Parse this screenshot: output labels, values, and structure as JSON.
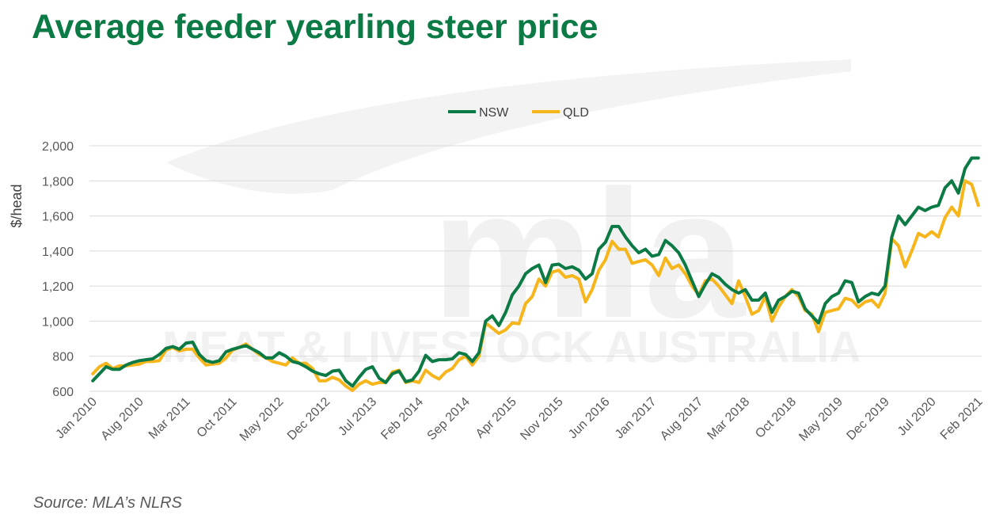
{
  "title": "Average feeder yearling steer price",
  "source": "Source: MLA’s NLRS",
  "watermark": {
    "logo": "mla",
    "tagline": "MEAT & LIVESTOCK AUSTRALIA"
  },
  "chart_data": {
    "type": "line",
    "title": "Average feeder yearling steer price",
    "ylabel": "$/head",
    "xlabel": "",
    "ylim": [
      600,
      2000
    ],
    "yticks": [
      600,
      800,
      1000,
      1200,
      1400,
      1600,
      1800,
      2000
    ],
    "ytick_labels": [
      "600",
      "800",
      "1,000",
      "1,200",
      "1,400",
      "1,600",
      "1,800",
      "2,000"
    ],
    "grid": "horizontal",
    "legend": "top-center",
    "x_tick_labels": [
      "Jan 2010",
      "Aug 2010",
      "Mar 2011",
      "Oct 2011",
      "May 2012",
      "Dec 2012",
      "Jul 2013",
      "Feb 2014",
      "Sep 2014",
      "Apr 2015",
      "Nov 2015",
      "Jun 2016",
      "Jan 2017",
      "Aug 2017",
      "Mar 2018",
      "Oct 2018",
      "May 2019",
      "Dec 2019",
      "Jul 2020",
      "Feb 2021"
    ],
    "x_start": "Jan 2010",
    "x_end": "Apr 2021",
    "series": [
      {
        "name": "NSW",
        "color": "#0c7a45",
        "values": [
          660,
          700,
          740,
          725,
          725,
          750,
          765,
          775,
          780,
          785,
          810,
          845,
          855,
          840,
          875,
          880,
          810,
          775,
          765,
          775,
          825,
          840,
          850,
          860,
          840,
          820,
          790,
          790,
          820,
          800,
          770,
          760,
          740,
          715,
          700,
          690,
          715,
          720,
          660,
          630,
          680,
          725,
          740,
          675,
          650,
          700,
          715,
          655,
          665,
          715,
          805,
          770,
          780,
          780,
          785,
          820,
          810,
          770,
          820,
          1000,
          1030,
          975,
          1050,
          1150,
          1200,
          1270,
          1300,
          1320,
          1220,
          1320,
          1325,
          1300,
          1310,
          1290,
          1240,
          1270,
          1410,
          1450,
          1540,
          1540,
          1480,
          1430,
          1390,
          1410,
          1370,
          1380,
          1460,
          1430,
          1390,
          1320,
          1230,
          1140,
          1210,
          1270,
          1250,
          1210,
          1180,
          1160,
          1180,
          1120,
          1120,
          1160,
          1050,
          1120,
          1140,
          1170,
          1160,
          1070,
          1030,
          990,
          1100,
          1140,
          1160,
          1230,
          1220,
          1110,
          1140,
          1160,
          1150,
          1200,
          1480,
          1600,
          1550,
          1600,
          1650,
          1630,
          1650,
          1660,
          1760,
          1800,
          1730,
          1870,
          1930,
          1930
        ]
      },
      {
        "name": "QLD",
        "color": "#f5b51b",
        "values": [
          700,
          740,
          760,
          730,
          745,
          745,
          750,
          755,
          770,
          770,
          775,
          835,
          850,
          830,
          840,
          840,
          790,
          750,
          755,
          760,
          790,
          835,
          850,
          870,
          840,
          810,
          790,
          770,
          760,
          750,
          790,
          760,
          760,
          730,
          660,
          660,
          680,
          665,
          630,
          605,
          640,
          660,
          640,
          650,
          650,
          710,
          720,
          650,
          660,
          650,
          720,
          690,
          670,
          710,
          730,
          780,
          800,
          750,
          800,
          990,
          960,
          930,
          950,
          990,
          985,
          1100,
          1140,
          1240,
          1200,
          1280,
          1290,
          1250,
          1260,
          1240,
          1110,
          1180,
          1290,
          1350,
          1455,
          1410,
          1410,
          1330,
          1340,
          1350,
          1320,
          1260,
          1360,
          1300,
          1320,
          1270,
          1200,
          1150,
          1230,
          1240,
          1200,
          1150,
          1100,
          1230,
          1140,
          1040,
          1060,
          1140,
          1000,
          1080,
          1140,
          1180,
          1140,
          1060,
          1040,
          940,
          1050,
          1060,
          1070,
          1130,
          1120,
          1080,
          1110,
          1120,
          1080,
          1160,
          1470,
          1430,
          1310,
          1400,
          1500,
          1480,
          1510,
          1480,
          1590,
          1650,
          1600,
          1800,
          1780,
          1660
        ]
      }
    ]
  }
}
